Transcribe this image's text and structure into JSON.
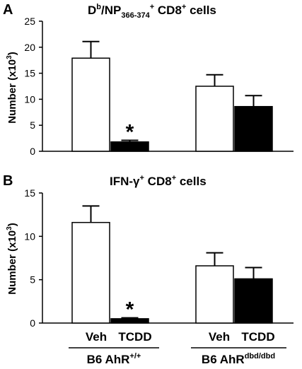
{
  "chart_data": [
    {
      "type": "bar",
      "panel_letter": "A",
      "title_main": "D",
      "title_sup1": "b",
      "title_mid": "/NP",
      "title_sub": "366-374",
      "title_sup2": "+",
      "title_end": " CD8",
      "title_sup3": "+",
      "title_tail": " cells",
      "ylabel_main": "Number (x10",
      "ylabel_sup": "3",
      "ylabel_end": ")",
      "ylim": [
        0,
        25
      ],
      "yticks": [
        0,
        5,
        10,
        15,
        20,
        25
      ],
      "groups": [
        "B6 AhR+/+",
        "B6 AhRdbd/dbd"
      ],
      "series": [
        {
          "name": "Veh",
          "color": "#ffffff",
          "values": [
            17.9,
            12.5
          ],
          "errors": [
            3.2,
            2.2
          ]
        },
        {
          "name": "TCDD",
          "color": "#000000",
          "values": [
            1.8,
            8.6
          ],
          "errors": [
            0.3,
            2.1
          ]
        }
      ],
      "annotations": [
        {
          "text": "*",
          "series": 1,
          "group": 0
        }
      ]
    },
    {
      "type": "bar",
      "panel_letter": "B",
      "title_main": "IFN-",
      "title_greek": "γ",
      "title_sup1": "+",
      "title_end": " CD8",
      "title_sup2": "+",
      "title_tail": " cells",
      "ylabel_main": "Number (x10",
      "ylabel_sup": "3",
      "ylabel_end": ")",
      "ylim": [
        0,
        15
      ],
      "yticks": [
        0,
        5,
        10,
        15
      ],
      "groups": [
        "B6 AhR+/+",
        "B6 AhRdbd/dbd"
      ],
      "series": [
        {
          "name": "Veh",
          "color": "#ffffff",
          "values": [
            11.6,
            6.6
          ],
          "errors": [
            1.9,
            1.5
          ]
        },
        {
          "name": "TCDD",
          "color": "#000000",
          "values": [
            0.5,
            5.1
          ],
          "errors": [
            0.1,
            1.3
          ]
        }
      ],
      "annotations": [
        {
          "text": "*",
          "series": 1,
          "group": 0
        }
      ]
    }
  ],
  "x_axis": {
    "category_labels": [
      "Veh",
      "TCDD",
      "Veh",
      "TCDD"
    ],
    "group_labels": [
      {
        "main": "B6 AhR",
        "sup": "+/+"
      },
      {
        "main": "B6 AhR",
        "sup": "dbd/dbd"
      }
    ]
  }
}
